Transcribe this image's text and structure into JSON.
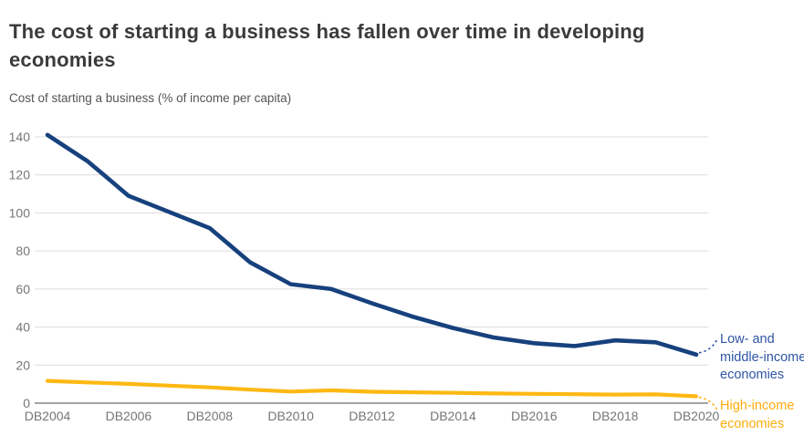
{
  "header": {
    "title": "The cost of starting a business has fallen over time in developing economies",
    "title_lines": [
      "The cost of starting a business has fallen over time in developing",
      "economies"
    ],
    "subtitle": "Cost of starting a business (% of income per capita)"
  },
  "chart_data": {
    "type": "line",
    "title": "The cost of starting a business has fallen over time in developing economies",
    "ylabel": "Cost of starting a business (% of income per capita)",
    "xlabel": "",
    "x": [
      "DB2004",
      "DB2005",
      "DB2006",
      "DB2007",
      "DB2008",
      "DB2009",
      "DB2010",
      "DB2011",
      "DB2012",
      "DB2013",
      "DB2014",
      "DB2015",
      "DB2016",
      "DB2017",
      "DB2018",
      "DB2019",
      "DB2020"
    ],
    "x_tick_labels": [
      "DB2004",
      "DB2006",
      "DB2008",
      "DB2010",
      "DB2012",
      "DB2014",
      "DB2016",
      "DB2018",
      "DB2020"
    ],
    "yticks": [
      0,
      20,
      40,
      60,
      80,
      100,
      120,
      140
    ],
    "ylim": [
      0,
      140
    ],
    "grid": true,
    "legend_position": "right end-of-line labels",
    "series": [
      {
        "name": "Low- and middle-income economies",
        "color": "#17417d",
        "label_color": "#2f55a4",
        "values": [
          141,
          127,
          109,
          100.5,
          92,
          74,
          62.5,
          60,
          52.5,
          45.5,
          39.5,
          34.5,
          31.5,
          30,
          33,
          32,
          25.5
        ]
      },
      {
        "name": "High-income economies",
        "color": "#fdb813",
        "label_color": "#fdac0d",
        "values": [
          11.7,
          10.9,
          10.1,
          9.2,
          8.3,
          7.1,
          6.1,
          6.7,
          6.0,
          5.7,
          5.4,
          5.1,
          4.9,
          4.7,
          4.5,
          4.6,
          3.6
        ]
      }
    ],
    "colors": {
      "grid": "#dcdcdc",
      "axis": "#4a4a4a",
      "tick_label": "#767676"
    }
  }
}
